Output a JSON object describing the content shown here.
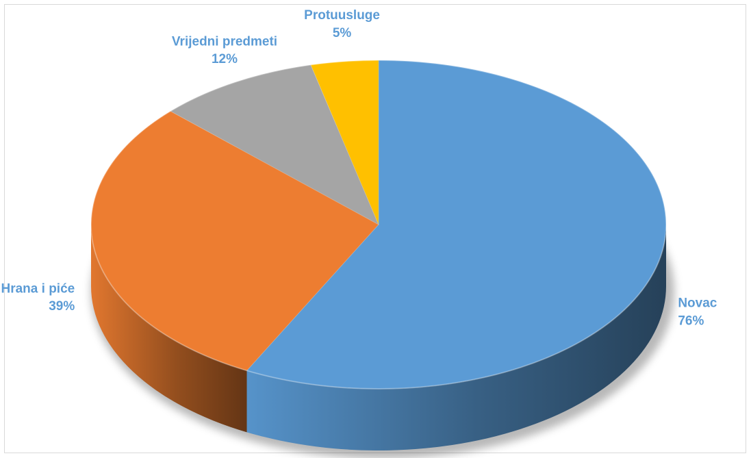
{
  "chart_data": {
    "type": "pie",
    "style": "3d",
    "categories": [
      "Novac",
      "Hrana i piće",
      "Vrijedni predmeti",
      "Protuusluge"
    ],
    "values": [
      76,
      39,
      12,
      5
    ],
    "labels": [
      "76%",
      "39%",
      "12%",
      "5%"
    ],
    "colors": [
      "#5B9BD5",
      "#ED7D31",
      "#A5A5A5",
      "#FFC000"
    ],
    "label_color": "#5B9BD5",
    "title": "",
    "legend": "none"
  }
}
